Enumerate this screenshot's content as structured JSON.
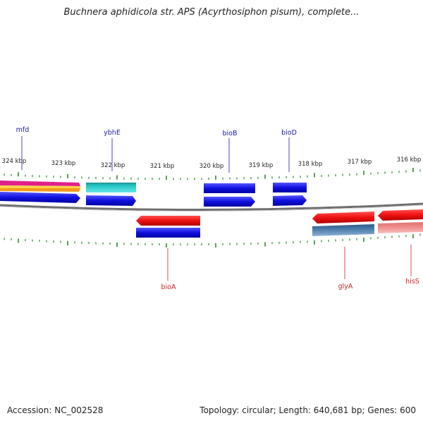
{
  "title": "Buchnera aphidicola str. APS (Acyrthosiphon pisum), complete...",
  "footer": {
    "accession": "Accession: NC_002528",
    "summary": "Topology: circular; Length: 640,681 bp; Genes: 600"
  },
  "scale_labels": [
    "324 kbp",
    "323 kbp",
    "322 kbp",
    "321 kbp",
    "320 kbp",
    "319 kbp",
    "318 kbp",
    "317 kbp",
    "316 kbp"
  ],
  "gene_labels_forward": [
    "mfd",
    "ybhE",
    "bioB",
    "bioD"
  ],
  "gene_labels_reverse": [
    "bioA",
    "glyA",
    "hisS"
  ],
  "colors": {
    "forward_label": "#1a1aaa",
    "reverse_label": "#cc2222",
    "tick": "#2a8a2a",
    "backbone": "#777777",
    "cds_blue": "#1010e0",
    "cds_red": "#ee1111",
    "cyan": "#22c4c4",
    "magenta": "#e0208a",
    "orange": "#f59a1a",
    "steel": "#4a7aaa",
    "pink": "#f09090"
  }
}
